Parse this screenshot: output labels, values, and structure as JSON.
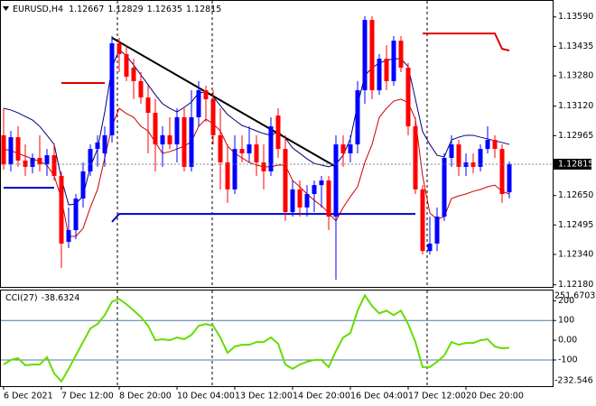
{
  "chart_data": [
    {
      "type": "candlestick",
      "title": "EURUSD,H4",
      "categories": [
        "6 Dec 2021",
        null,
        null,
        null,
        null,
        null,
        null,
        null,
        "7 Dec 12:00",
        null,
        null,
        null,
        null,
        null,
        null,
        null,
        "8 Dec 20:00",
        null,
        null,
        null,
        null,
        null,
        null,
        null,
        "10 Dec 04:00",
        null,
        null,
        null,
        null,
        null,
        null,
        null,
        "13 Dec 12:00",
        null,
        null,
        null,
        null,
        null,
        null,
        null,
        "14 Dec 20:00",
        null,
        null,
        null,
        null,
        null,
        null,
        null,
        "16 Dec 04:00",
        null,
        null,
        null,
        null,
        null,
        null,
        null,
        "17 Dec 12:00",
        null,
        null,
        null,
        null,
        null,
        null,
        null,
        "20 Dec 20:00",
        null,
        null,
        null,
        null,
        null,
        null
      ],
      "open": [
        1.12967,
        1.12815,
        1.12957,
        1.12834,
        1.12801,
        1.12848,
        1.12815,
        1.12862,
        1.12753,
        1.12406,
        1.12468,
        1.12634,
        1.12777,
        1.12895,
        1.12872,
        1.12967,
        1.13451,
        1.13394,
        1.13323,
        1.13252,
        1.13166,
        1.13085,
        1.12919,
        1.12967,
        1.12919,
        1.13062,
        1.12801,
        1.13062,
        1.13204,
        1.13157,
        1.12967,
        1.12824,
        1.12682,
        1.12895,
        1.12872,
        1.12919,
        1.12824,
        1.12777,
        1.13071,
        1.12895,
        1.12563,
        1.12682,
        1.12587,
        1.12658,
        1.12705,
        1.12729,
        1.12539,
        1.12919,
        1.12872,
        1.12919,
        1.13204,
        1.13574,
        1.13204,
        1.1337,
        1.13252,
        1.13465,
        1.13323,
        1.13014,
        1.12682,
        1.12358,
        1.12397,
        1.12539,
        1.12848,
        1.12919,
        1.12801,
        1.12824,
        1.12801,
        1.12895,
        1.12943,
        1.12895,
        1.12667
      ],
      "high": [
        1.13109,
        1.1299,
        1.13014,
        1.12919,
        1.12872,
        1.12967,
        1.12895,
        1.12919,
        1.12777,
        1.12587,
        1.12658,
        1.12824,
        1.12919,
        1.12967,
        1.13014,
        1.13489,
        1.1348,
        1.13441,
        1.1337,
        1.13299,
        1.13228,
        1.13157,
        1.13014,
        1.13062,
        1.13109,
        1.13109,
        1.13204,
        1.13252,
        1.13228,
        1.13204,
        1.13109,
        1.12919,
        1.12967,
        1.12967,
        1.13014,
        1.12967,
        1.12919,
        1.13062,
        1.13109,
        1.12967,
        1.12729,
        1.12729,
        1.12705,
        1.12729,
        1.12753,
        1.12753,
        1.12967,
        1.12967,
        1.12967,
        1.13252,
        1.13594,
        1.13594,
        1.13394,
        1.13441,
        1.13489,
        1.13489,
        1.13347,
        1.13062,
        1.12705,
        1.12539,
        1.12587,
        1.12872,
        1.12967,
        1.12943,
        1.12872,
        1.12872,
        1.12919,
        1.13014,
        1.12967,
        1.12919,
        1.12829
      ],
      "low": [
        1.12786,
        1.12777,
        1.12801,
        1.12753,
        1.12767,
        1.12777,
        1.12753,
        1.12729,
        1.12268,
        1.12373,
        1.1242,
        1.12587,
        1.12753,
        1.12801,
        1.12801,
        1.12929,
        1.13299,
        1.13252,
        1.13157,
        1.13133,
        1.12872,
        1.12777,
        1.12801,
        1.12895,
        1.12824,
        1.12777,
        1.12777,
        1.13014,
        1.13038,
        1.12919,
        1.12682,
        1.12611,
        1.12658,
        1.12824,
        1.12824,
        1.12753,
        1.12682,
        1.12753,
        1.12848,
        1.12516,
        1.12539,
        1.12539,
        1.12539,
        1.12563,
        1.12587,
        1.12468,
        1.12207,
        1.12801,
        1.12824,
        1.12872,
        1.13133,
        1.13157,
        1.1318,
        1.13204,
        1.13228,
        1.13299,
        1.12967,
        1.12658,
        1.1234,
        1.1234,
        1.12358,
        1.12516,
        1.12801,
        1.12753,
        1.12753,
        1.12767,
        1.12777,
        1.12872,
        1.12848,
        1.12611,
        1.12635
      ],
      "close": [
        1.12815,
        1.12957,
        1.12834,
        1.12801,
        1.12848,
        1.12815,
        1.12862,
        1.12753,
        1.12397,
        1.12468,
        1.12634,
        1.12777,
        1.12895,
        1.12929,
        1.12967,
        1.13451,
        1.13394,
        1.13275,
        1.13252,
        1.13166,
        1.13085,
        1.12919,
        1.12967,
        1.12919,
        1.13062,
        1.12801,
        1.13062,
        1.13204,
        1.13157,
        1.12967,
        1.12824,
        1.12682,
        1.12895,
        1.12872,
        1.12919,
        1.12824,
        1.12777,
        1.13014,
        1.12895,
        1.12563,
        1.12682,
        1.12587,
        1.12658,
        1.12705,
        1.12729,
        1.12539,
        1.12919,
        1.12872,
        1.12919,
        1.13204,
        1.13574,
        1.13204,
        1.1337,
        1.13252,
        1.13465,
        1.13323,
        1.13014,
        1.12682,
        1.12358,
        1.12397,
        1.12539,
        1.12848,
        1.12919,
        1.12801,
        1.12824,
        1.12801,
        1.12895,
        1.12943,
        1.12895,
        1.12658,
        1.12815
      ],
      "up_color": "#0000ff",
      "down_color": "#ff0000",
      "series": [
        {
          "color": "#00007a",
          "values": [
            1.13109,
            1.131,
            1.13085,
            1.13066,
            1.13047,
            1.13014,
            1.12967,
            1.12919,
            1.12739,
            1.12601,
            1.12606,
            1.12648,
            1.12801,
            1.12895,
            1.1309,
            1.13323,
            1.13418,
            1.13385,
            1.13337,
            1.13285,
            1.13233,
            1.1318,
            1.13133,
            1.13109,
            1.1309,
            1.13114,
            1.13142,
            1.1319,
            1.13195,
            1.13171,
            1.13123,
            1.13076,
            1.13047,
            1.13019,
            1.13005,
            1.1299,
            1.12976,
            1.12967,
            1.12986,
            1.12952,
            1.129,
            1.12872,
            1.12843,
            1.12819,
            1.1281,
            1.12801,
            1.12815,
            1.12862,
            1.12948,
            1.13128,
            1.1328,
            1.13323,
            1.13347,
            1.13361,
            1.1337,
            1.1337,
            1.13328,
            1.13157,
            1.12986,
            1.12919,
            1.12862,
            1.12853,
            1.12943,
            1.12957,
            1.12967,
            1.12967,
            1.12957,
            1.12948,
            1.12938,
            1.12929,
            1.12919
          ]
        },
        {
          "color": "#cc0000",
          "values": [
            1.12895,
            1.12886,
            1.12872,
            1.12857,
            1.12843,
            1.12829,
            1.1281,
            1.12753,
            1.12634,
            1.12435,
            1.12435,
            1.12477,
            1.12587,
            1.12682,
            1.12848,
            1.13014,
            1.13109,
            1.13081,
            1.13062,
            1.13014,
            1.1299,
            1.12929,
            1.12872,
            1.12881,
            1.12895,
            1.1291,
            1.12934,
            1.13014,
            1.13052,
            1.13028,
            1.1299,
            1.1291,
            1.12872,
            1.12848,
            1.12824,
            1.1281,
            1.12801,
            1.12801,
            1.1281,
            1.1281,
            1.12729,
            1.12696,
            1.12658,
            1.12625,
            1.12596,
            1.12558,
            1.12516,
            1.12587,
            1.12644,
            1.12696,
            1.12824,
            1.12919,
            1.13062,
            1.13109,
            1.13147,
            1.13157,
            1.13138,
            1.13052,
            1.12753,
            1.12558,
            1.12525,
            1.12539,
            1.12634,
            1.12648,
            1.12658,
            1.12672,
            1.12682,
            1.12696,
            1.12705,
            1.12672,
            1.12658
          ]
        }
      ],
      "lines": [
        {
          "color": "#000000",
          "x": [
            15,
            46
          ],
          "values": [
            1.1348,
            1.12801
          ]
        },
        {
          "color": "#dd0000",
          "x": [
            8,
            14
          ],
          "values": [
            1.13242,
            1.13242
          ]
        },
        {
          "color": "#dd0000",
          "x": [
            58,
            68,
            69,
            70
          ],
          "values": [
            1.13503,
            1.13503,
            1.13422,
            1.13413
          ]
        },
        {
          "color": "#0000cc",
          "x": [
            0,
            7
          ],
          "values": [
            1.12691,
            1.12691
          ]
        },
        {
          "color": "#0000cc",
          "x": [
            15,
            16,
            57
          ],
          "values": [
            1.12511,
            1.12553,
            1.12553
          ]
        }
      ],
      "ylim": [
        1.12169,
        1.13679
      ],
      "yticks": [
        {
          "value": 1.1359,
          "label": "1.13590"
        },
        1.13435,
        {
          "value": 1.1328,
          "label": "1.13280"
        },
        {
          "value": 1.1312,
          "label": "1.13120"
        },
        1.12965,
        {
          "value": 1.1265,
          "label": "1.12650"
        },
        1.12495,
        {
          "value": 1.1234,
          "label": "1.12340"
        },
        {
          "value": 1.1218,
          "label": "1.12180"
        }
      ]
    },
    {
      "type": "line",
      "series": [
        {
          "name": "CCI(27)",
          "color": "#66dd00",
          "values": [
            -123,
            -100,
            -91,
            -127,
            -123,
            -123,
            -86,
            -168,
            -209,
            -145,
            -77,
            -9,
            59,
            82,
            127,
            195,
            209,
            182,
            150,
            118,
            73,
            0,
            5,
            0,
            14,
            5,
            27,
            73,
            82,
            73,
            14,
            -64,
            -32,
            -23,
            -23,
            -9,
            -9,
            14,
            -18,
            -123,
            -145,
            -123,
            -109,
            -100,
            -100,
            -136,
            -55,
            14,
            36,
            150,
            227,
            173,
            136,
            150,
            127,
            150,
            82,
            -9,
            -136,
            -136,
            -109,
            -77,
            -9,
            -23,
            -14,
            -14,
            0,
            5,
            -32,
            -41,
            -38.6324
          ]
        }
      ],
      "levels": [
        100,
        -100
      ],
      "ylim": [
        -232.546,
        251.6703
      ],
      "yticks": [
        200,
        100,
        {
          "value": 0,
          "label": "0.00"
        },
        -100
      ]
    }
  ]
}
